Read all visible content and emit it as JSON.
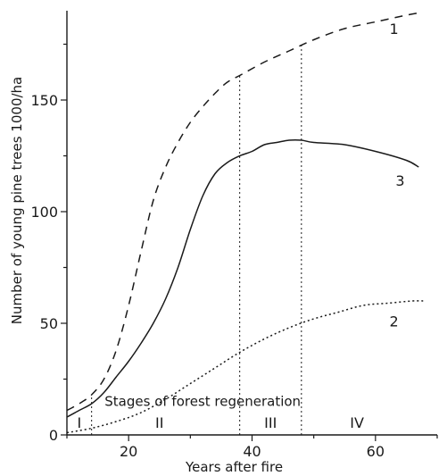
{
  "chart_data": {
    "type": "line",
    "title": "",
    "xlabel": "Years after fire",
    "ylabel": "Number of young pine trees 1000/ha",
    "xlim": [
      10,
      70
    ],
    "ylim": [
      0,
      190
    ],
    "x_ticks": [
      20,
      40,
      60
    ],
    "y_ticks": [
      0,
      50,
      100,
      150
    ],
    "series": [
      {
        "name": "1",
        "style": "dashed",
        "x": [
          10,
          12,
          14,
          16,
          18,
          20,
          22,
          24,
          26,
          28,
          30,
          32,
          34,
          36,
          38,
          42,
          46,
          50,
          55,
          60,
          65,
          67
        ],
        "y": [
          11,
          14,
          18,
          25,
          38,
          58,
          82,
          105,
          120,
          131,
          140,
          147,
          153,
          158,
          161,
          167,
          172,
          177,
          182,
          185,
          188,
          189
        ]
      },
      {
        "name": "3",
        "style": "solid",
        "x": [
          10,
          12,
          14,
          16,
          18,
          20,
          22,
          24,
          26,
          28,
          30,
          32,
          34,
          36,
          38,
          40,
          42,
          44,
          46,
          48,
          50,
          55,
          60,
          65,
          67
        ],
        "y": [
          8,
          11,
          14,
          19,
          26,
          33,
          41,
          50,
          61,
          75,
          92,
          107,
          117,
          122,
          125,
          127,
          130,
          131,
          132,
          132,
          131,
          130,
          127,
          123,
          120
        ]
      },
      {
        "name": "2",
        "style": "dotted",
        "x": [
          10,
          14,
          18,
          22,
          26,
          30,
          34,
          38,
          42,
          46,
          50,
          54,
          58,
          62,
          66,
          68
        ],
        "y": [
          1,
          3,
          6,
          10,
          16,
          23,
          30,
          37,
          43,
          48,
          52,
          55,
          58,
          59,
          60,
          60
        ]
      }
    ],
    "stage_boundaries": [
      14,
      38,
      48
    ],
    "stage_labels": [
      {
        "label": "I",
        "x": 12
      },
      {
        "label": "II",
        "x": 25
      },
      {
        "label": "III",
        "x": 43
      },
      {
        "label": "IV",
        "x": 57
      }
    ],
    "annotation": "Stages of forest regeneration",
    "legend": "none"
  }
}
